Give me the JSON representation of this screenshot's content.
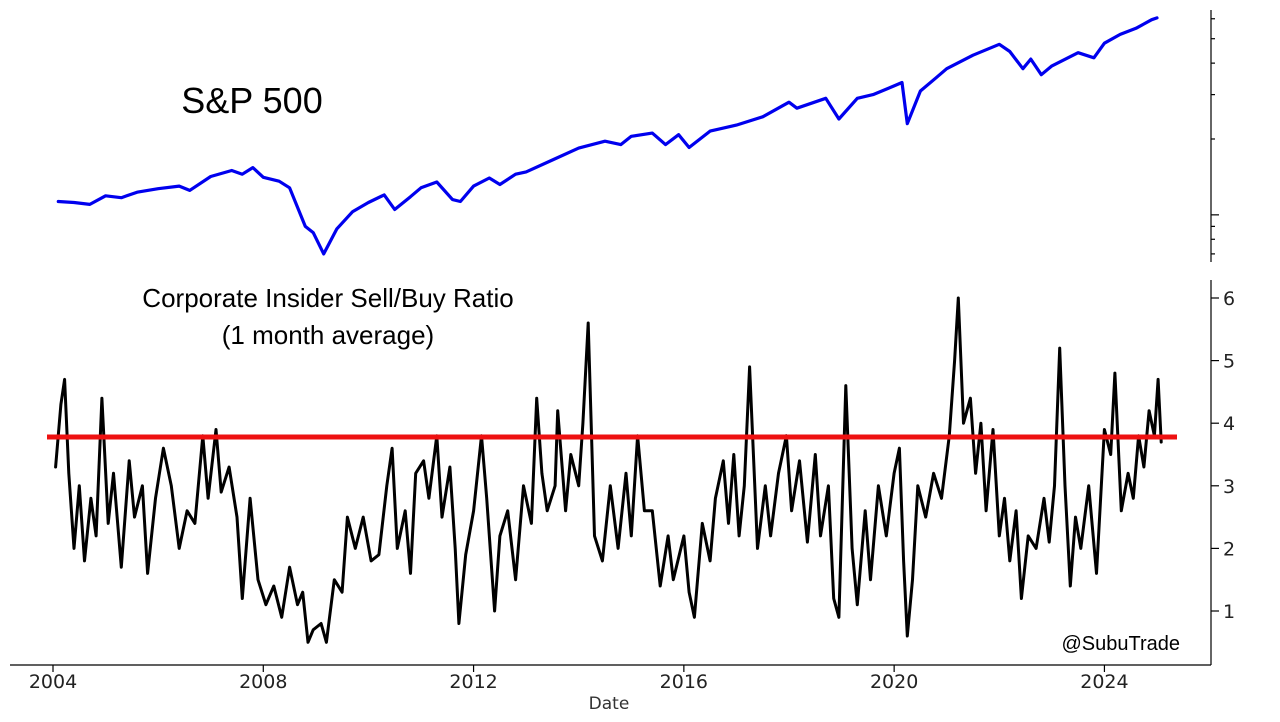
{
  "chart_data": [
    {
      "type": "line",
      "title": "S&P 500",
      "yscale": "log",
      "xlim": [
        2004,
        2025
      ],
      "ylim": [
        650,
        6500
      ],
      "series": [
        {
          "color": "#0000ee",
          "points": [
            [
              2004.1,
              1130
            ],
            [
              2004.4,
              1120
            ],
            [
              2004.7,
              1100
            ],
            [
              2005.0,
              1190
            ],
            [
              2005.3,
              1170
            ],
            [
              2005.6,
              1230
            ],
            [
              2006.0,
              1270
            ],
            [
              2006.4,
              1300
            ],
            [
              2006.6,
              1250
            ],
            [
              2007.0,
              1420
            ],
            [
              2007.4,
              1500
            ],
            [
              2007.6,
              1450
            ],
            [
              2007.8,
              1540
            ],
            [
              2008.0,
              1410
            ],
            [
              2008.3,
              1360
            ],
            [
              2008.5,
              1280
            ],
            [
              2008.8,
              900
            ],
            [
              2008.95,
              850
            ],
            [
              2009.15,
              700
            ],
            [
              2009.4,
              880
            ],
            [
              2009.7,
              1030
            ],
            [
              2010.0,
              1120
            ],
            [
              2010.3,
              1200
            ],
            [
              2010.5,
              1050
            ],
            [
              2010.8,
              1180
            ],
            [
              2011.0,
              1280
            ],
            [
              2011.3,
              1350
            ],
            [
              2011.6,
              1150
            ],
            [
              2011.75,
              1130
            ],
            [
              2012.0,
              1300
            ],
            [
              2012.3,
              1400
            ],
            [
              2012.5,
              1320
            ],
            [
              2012.8,
              1450
            ],
            [
              2013.0,
              1480
            ],
            [
              2013.5,
              1650
            ],
            [
              2014.0,
              1840
            ],
            [
              2014.5,
              1960
            ],
            [
              2014.8,
              1900
            ],
            [
              2015.0,
              2050
            ],
            [
              2015.4,
              2110
            ],
            [
              2015.65,
              1900
            ],
            [
              2015.9,
              2080
            ],
            [
              2016.1,
              1850
            ],
            [
              2016.5,
              2150
            ],
            [
              2017.0,
              2270
            ],
            [
              2017.5,
              2450
            ],
            [
              2018.0,
              2800
            ],
            [
              2018.15,
              2650
            ],
            [
              2018.7,
              2900
            ],
            [
              2018.95,
              2400
            ],
            [
              2019.3,
              2900
            ],
            [
              2019.6,
              3000
            ],
            [
              2020.0,
              3250
            ],
            [
              2020.15,
              3350
            ],
            [
              2020.25,
              2300
            ],
            [
              2020.5,
              3100
            ],
            [
              2020.8,
              3500
            ],
            [
              2021.0,
              3800
            ],
            [
              2021.5,
              4300
            ],
            [
              2022.0,
              4750
            ],
            [
              2022.2,
              4450
            ],
            [
              2022.45,
              3800
            ],
            [
              2022.6,
              4150
            ],
            [
              2022.8,
              3600
            ],
            [
              2023.0,
              3900
            ],
            [
              2023.5,
              4400
            ],
            [
              2023.8,
              4200
            ],
            [
              2024.0,
              4800
            ],
            [
              2024.3,
              5200
            ],
            [
              2024.6,
              5500
            ],
            [
              2024.9,
              5950
            ],
            [
              2025.0,
              6050
            ]
          ]
        }
      ]
    },
    {
      "type": "line",
      "title": [
        "Corporate Insider Sell/Buy Ratio",
        "(1 month average)"
      ],
      "xlabel": "Date",
      "xlim": [
        2004,
        2025
      ],
      "ylim": [
        0.3,
        6.3
      ],
      "xticks": [
        2004,
        2008,
        2012,
        2016,
        2020,
        2024
      ],
      "yticks": [
        1,
        2,
        3,
        4,
        5,
        6
      ],
      "series": [
        {
          "color": "#000000",
          "points": [
            [
              2004.05,
              3.3
            ],
            [
              2004.15,
              4.3
            ],
            [
              2004.22,
              4.7
            ],
            [
              2004.3,
              3.2
            ],
            [
              2004.4,
              2.0
            ],
            [
              2004.5,
              3.0
            ],
            [
              2004.6,
              1.8
            ],
            [
              2004.72,
              2.8
            ],
            [
              2004.82,
              2.2
            ],
            [
              2004.93,
              4.4
            ],
            [
              2005.05,
              2.4
            ],
            [
              2005.15,
              3.2
            ],
            [
              2005.3,
              1.7
            ],
            [
              2005.45,
              3.4
            ],
            [
              2005.55,
              2.5
            ],
            [
              2005.7,
              3.0
            ],
            [
              2005.8,
              1.6
            ],
            [
              2005.95,
              2.8
            ],
            [
              2006.1,
              3.6
            ],
            [
              2006.25,
              3.0
            ],
            [
              2006.4,
              2.0
            ],
            [
              2006.55,
              2.6
            ],
            [
              2006.7,
              2.4
            ],
            [
              2006.85,
              3.8
            ],
            [
              2006.95,
              2.8
            ],
            [
              2007.1,
              3.9
            ],
            [
              2007.2,
              2.9
            ],
            [
              2007.35,
              3.3
            ],
            [
              2007.5,
              2.5
            ],
            [
              2007.6,
              1.2
            ],
            [
              2007.75,
              2.8
            ],
            [
              2007.9,
              1.5
            ],
            [
              2008.05,
              1.1
            ],
            [
              2008.2,
              1.4
            ],
            [
              2008.35,
              0.9
            ],
            [
              2008.5,
              1.7
            ],
            [
              2008.65,
              1.1
            ],
            [
              2008.75,
              1.3
            ],
            [
              2008.85,
              0.5
            ],
            [
              2008.95,
              0.7
            ],
            [
              2009.1,
              0.8
            ],
            [
              2009.2,
              0.5
            ],
            [
              2009.35,
              1.5
            ],
            [
              2009.5,
              1.3
            ],
            [
              2009.6,
              2.5
            ],
            [
              2009.75,
              2.0
            ],
            [
              2009.9,
              2.5
            ],
            [
              2010.05,
              1.8
            ],
            [
              2010.2,
              1.9
            ],
            [
              2010.35,
              3.0
            ],
            [
              2010.45,
              3.6
            ],
            [
              2010.55,
              2.0
            ],
            [
              2010.7,
              2.6
            ],
            [
              2010.8,
              1.6
            ],
            [
              2010.9,
              3.2
            ],
            [
              2011.05,
              3.4
            ],
            [
              2011.15,
              2.8
            ],
            [
              2011.3,
              3.8
            ],
            [
              2011.4,
              2.5
            ],
            [
              2011.55,
              3.3
            ],
            [
              2011.65,
              2.0
            ],
            [
              2011.72,
              0.8
            ],
            [
              2011.85,
              1.9
            ],
            [
              2012.0,
              2.6
            ],
            [
              2012.15,
              3.8
            ],
            [
              2012.25,
              2.8
            ],
            [
              2012.4,
              1.0
            ],
            [
              2012.5,
              2.2
            ],
            [
              2012.65,
              2.6
            ],
            [
              2012.8,
              1.5
            ],
            [
              2012.95,
              3.0
            ],
            [
              2013.1,
              2.4
            ],
            [
              2013.2,
              4.4
            ],
            [
              2013.3,
              3.2
            ],
            [
              2013.4,
              2.6
            ],
            [
              2013.55,
              3.0
            ],
            [
              2013.6,
              4.2
            ],
            [
              2013.75,
              2.6
            ],
            [
              2013.85,
              3.5
            ],
            [
              2014.0,
              3.0
            ],
            [
              2014.08,
              4.0
            ],
            [
              2014.18,
              5.6
            ],
            [
              2014.3,
              2.2
            ],
            [
              2014.45,
              1.8
            ],
            [
              2014.6,
              3.0
            ],
            [
              2014.75,
              2.0
            ],
            [
              2014.9,
              3.2
            ],
            [
              2015.0,
              2.2
            ],
            [
              2015.12,
              3.8
            ],
            [
              2015.25,
              2.6
            ],
            [
              2015.4,
              2.6
            ],
            [
              2015.55,
              1.4
            ],
            [
              2015.7,
              2.2
            ],
            [
              2015.8,
              1.5
            ],
            [
              2016.0,
              2.2
            ],
            [
              2016.1,
              1.3
            ],
            [
              2016.2,
              0.9
            ],
            [
              2016.35,
              2.4
            ],
            [
              2016.5,
              1.8
            ],
            [
              2016.6,
              2.8
            ],
            [
              2016.75,
              3.4
            ],
            [
              2016.85,
              2.4
            ],
            [
              2016.95,
              3.5
            ],
            [
              2017.05,
              2.2
            ],
            [
              2017.15,
              3.0
            ],
            [
              2017.25,
              4.9
            ],
            [
              2017.4,
              2.0
            ],
            [
              2017.55,
              3.0
            ],
            [
              2017.65,
              2.2
            ],
            [
              2017.8,
              3.2
            ],
            [
              2017.95,
              3.8
            ],
            [
              2018.05,
              2.6
            ],
            [
              2018.2,
              3.4
            ],
            [
              2018.35,
              2.1
            ],
            [
              2018.5,
              3.5
            ],
            [
              2018.6,
              2.2
            ],
            [
              2018.75,
              3.0
            ],
            [
              2018.85,
              1.2
            ],
            [
              2018.95,
              0.9
            ],
            [
              2019.08,
              4.6
            ],
            [
              2019.2,
              2.0
            ],
            [
              2019.3,
              1.1
            ],
            [
              2019.45,
              2.6
            ],
            [
              2019.55,
              1.5
            ],
            [
              2019.7,
              3.0
            ],
            [
              2019.85,
              2.2
            ],
            [
              2020.0,
              3.2
            ],
            [
              2020.1,
              3.6
            ],
            [
              2020.18,
              1.8
            ],
            [
              2020.25,
              0.6
            ],
            [
              2020.35,
              1.5
            ],
            [
              2020.45,
              3.0
            ],
            [
              2020.6,
              2.5
            ],
            [
              2020.75,
              3.2
            ],
            [
              2020.9,
              2.8
            ],
            [
              2021.05,
              3.8
            ],
            [
              2021.15,
              5.0
            ],
            [
              2021.22,
              6.0
            ],
            [
              2021.32,
              4.0
            ],
            [
              2021.45,
              4.4
            ],
            [
              2021.55,
              3.2
            ],
            [
              2021.65,
              4.0
            ],
            [
              2021.75,
              2.6
            ],
            [
              2021.88,
              3.9
            ],
            [
              2022.0,
              2.2
            ],
            [
              2022.1,
              2.8
            ],
            [
              2022.2,
              1.8
            ],
            [
              2022.32,
              2.6
            ],
            [
              2022.42,
              1.2
            ],
            [
              2022.55,
              2.2
            ],
            [
              2022.7,
              2.0
            ],
            [
              2022.85,
              2.8
            ],
            [
              2022.95,
              2.1
            ],
            [
              2023.05,
              3.0
            ],
            [
              2023.15,
              5.2
            ],
            [
              2023.25,
              3.0
            ],
            [
              2023.35,
              1.4
            ],
            [
              2023.45,
              2.5
            ],
            [
              2023.55,
              2.0
            ],
            [
              2023.7,
              3.0
            ],
            [
              2023.85,
              1.6
            ],
            [
              2024.0,
              3.9
            ],
            [
              2024.12,
              3.5
            ],
            [
              2024.2,
              4.8
            ],
            [
              2024.32,
              2.6
            ],
            [
              2024.45,
              3.2
            ],
            [
              2024.55,
              2.8
            ],
            [
              2024.65,
              3.8
            ],
            [
              2024.75,
              3.3
            ],
            [
              2024.85,
              4.2
            ],
            [
              2024.95,
              3.8
            ],
            [
              2025.02,
              4.7
            ],
            [
              2025.08,
              3.7
            ]
          ]
        }
      ],
      "reference_line": {
        "y": 3.78,
        "color": "#ee1111"
      },
      "annotation": "@SubuTrade"
    }
  ]
}
